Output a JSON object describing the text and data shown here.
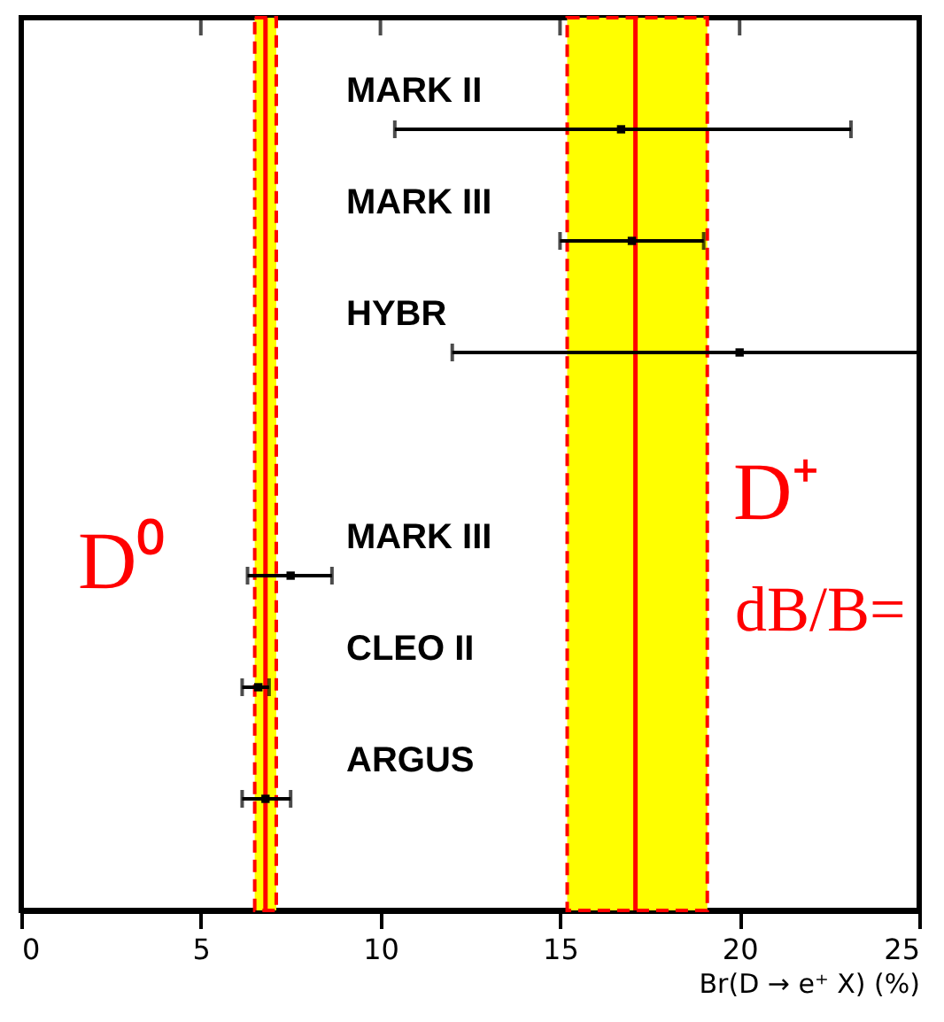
{
  "chart_data": {
    "type": "scatter",
    "xlabel": "Br(D → e⁺ X)    (%)",
    "categories": [
      "MARK II",
      "MARK III",
      "HYBR",
      null,
      "MARK III",
      "CLEO II",
      "ARGUS"
    ],
    "series": [
      {
        "color": "#000000",
        "values": [
          16.7,
          17.0,
          20.0,
          null,
          7.5,
          6.6,
          6.8
        ],
        "errors": [
          [
            10.4,
            23.1
          ],
          [
            15.0,
            19.0
          ],
          [
            12.0,
            25.0
          ],
          null,
          [
            6.3,
            8.65
          ],
          [
            6.15,
            6.9
          ],
          [
            6.15,
            7.5
          ]
        ]
      }
    ],
    "orientation": "horizontal",
    "marker": "square",
    "xlim": [
      0,
      25
    ],
    "xticks": [
      0,
      5,
      10,
      15,
      20,
      25
    ],
    "bands": [
      {
        "axis": "x",
        "from": 6.5,
        "to": 7.1,
        "label": "D⁰",
        "color": "#ffff00"
      },
      {
        "axis": "x",
        "from": 15.2,
        "to": 19.1,
        "label": "D⁺",
        "color": "#ffff00"
      }
    ],
    "ref_lines": [
      {
        "axis": "x",
        "value": 6.8,
        "color": "#ff0000",
        "line_style": "solid"
      },
      {
        "axis": "x",
        "value": 17.1,
        "color": "#ff0000",
        "line_style": "solid"
      }
    ],
    "annotations": [
      "dB/B="
    ]
  }
}
